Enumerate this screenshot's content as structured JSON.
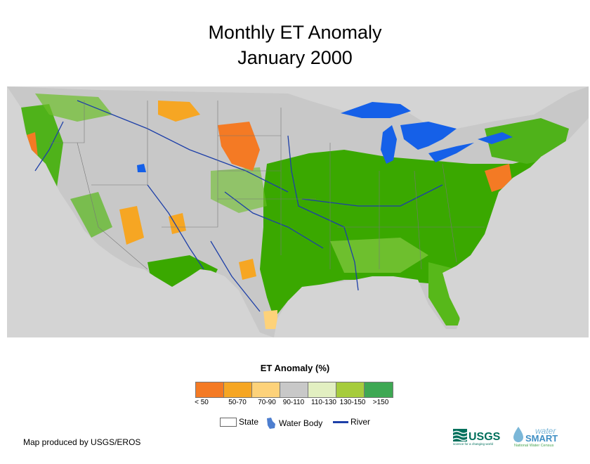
{
  "title": "Monthly ET Anomaly",
  "subtitle": "January 2000",
  "legend": {
    "title": "ET Anomaly (%)",
    "classes": [
      {
        "label": "< 50",
        "color": "#f47a24"
      },
      {
        "label": "50-70",
        "color": "#f6a623"
      },
      {
        "label": "70-90",
        "color": "#fdd27a"
      },
      {
        "label": "90-110",
        "color": "#c8c8c8"
      },
      {
        "label": "110-130",
        "color": "#e2efc1"
      },
      {
        "label": "130-150",
        "color": "#a6cc3c"
      },
      {
        "label": ">150",
        "color": "#3ea853"
      }
    ],
    "reference": {
      "state_label": "State",
      "water_label": "Water Body",
      "river_label": "River"
    }
  },
  "colors": {
    "background_map": "#c8c8c8",
    "water": "#1560e8",
    "river": "#1d3fa8",
    "anomaly_green": "#3aa800",
    "anomaly_orange": "#f47a24"
  },
  "footer": {
    "credit": "Map produced by USGS/EROS"
  },
  "logos": {
    "usgs_text": "USGS",
    "usgs_tagline": "science for a changing world",
    "watersmart_word1": "water",
    "watersmart_word2": "SMART",
    "watersmart_tagline": "National Water Census"
  }
}
